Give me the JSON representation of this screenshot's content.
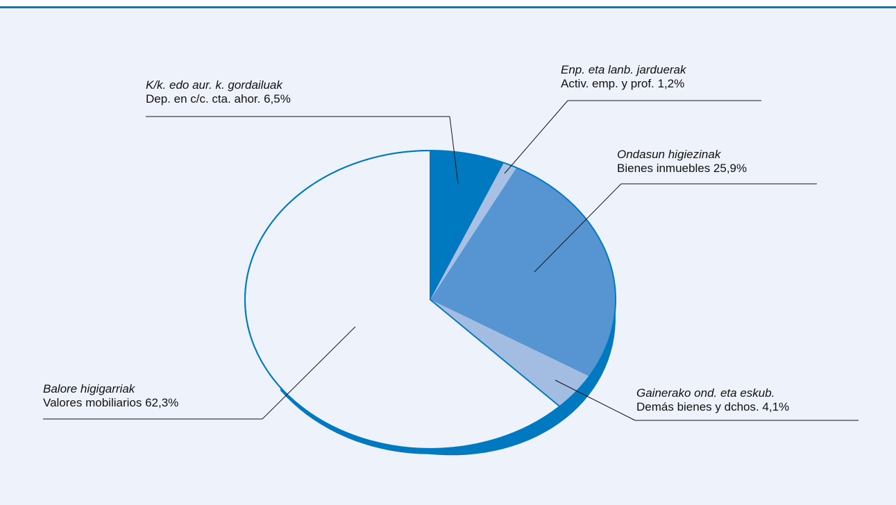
{
  "chart_data": {
    "type": "pie",
    "title": "",
    "slices": [
      {
        "label_eu": "K/k. edo aur. k. gordailuak",
        "label_es": "Dep. en c/c. cta. ahor.",
        "value": 6.5,
        "display": "6,5%",
        "color": "#0079c1"
      },
      {
        "label_eu": "Enp. eta lanb. jarduerak",
        "label_es": "Activ. emp. y prof.",
        "value": 1.2,
        "display": "1,2%",
        "color": "#a8c0e4"
      },
      {
        "label_eu": "Ondasun higiezinak",
        "label_es": "Bienes inmuebles",
        "value": 25.9,
        "display": "25,9%",
        "color": "#5694d2"
      },
      {
        "label_eu": "Gainerako ond. eta eskub.",
        "label_es": "Demás bienes y dchos.",
        "value": 4.1,
        "display": "4,1%",
        "color": "#a3bde2"
      },
      {
        "label_eu": "Balore higigarriak",
        "label_es": "Valores mobiliarios",
        "value": 62.3,
        "display": "62,3%",
        "color": "#eef2fa"
      }
    ],
    "depth_color": "#0079c1",
    "outline_color": "#0079c1"
  }
}
